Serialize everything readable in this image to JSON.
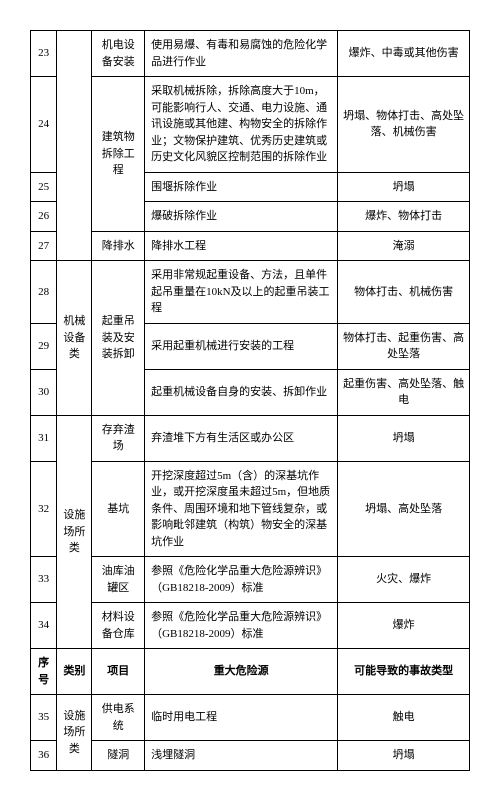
{
  "header": {
    "seq": "序号",
    "cat": "类别",
    "item": "项目",
    "src": "重大危险源",
    "acc": "可能导致的事故类型"
  },
  "rows": [
    {
      "seq": "23",
      "cat": "",
      "item": "机电设备安装",
      "src": "使用易爆、有毒和易腐蚀的危险化学品进行作业",
      "acc": "爆炸、中毒或其他伤害"
    },
    {
      "seq": "24",
      "cat": "",
      "item": "建筑物拆除工程",
      "src": "采取机械拆除，拆除高度大于10m，可能影响行人、交通、电力设施、通讯设施或其他建、构物安全的拆除作业；文物保护建筑、优秀历史建筑或历史文化风貌区控制范围的拆除作业",
      "acc": "坍塌、物体打击、高处坠落、机械伤害"
    },
    {
      "seq": "25",
      "cat": "",
      "item": "",
      "src": "围堰拆除作业",
      "acc": "坍塌"
    },
    {
      "seq": "26",
      "cat": "",
      "item": "",
      "src": "爆破拆除作业",
      "acc": "爆炸、物体打击"
    },
    {
      "seq": "27",
      "cat": "",
      "item": "降排水",
      "src": "降排水工程",
      "acc": "淹溺"
    },
    {
      "seq": "28",
      "cat": "机械设备类",
      "item": "起重吊装及安装拆卸",
      "src": "采用非常规起重设备、方法，且单件起吊重量在10kN及以上的起重吊装工程",
      "acc": "物体打击、机械伤害"
    },
    {
      "seq": "29",
      "cat": "",
      "item": "",
      "src": "采用起重机械进行安装的工程",
      "acc": "物体打击、起重伤害、高处坠落"
    },
    {
      "seq": "30",
      "cat": "",
      "item": "",
      "src": "起重机械设备自身的安装、拆卸作业",
      "acc": "起重伤害、高处坠落、触电"
    },
    {
      "seq": "31",
      "cat": "设施场所类",
      "item": "存弃渣场",
      "src": "弃渣堆下方有生活区或办公区",
      "acc": "坍塌"
    },
    {
      "seq": "32",
      "cat": "",
      "item": "基坑",
      "src": "开挖深度超过5m（含）的深基坑作业，或开挖深度虽未超过5m，但地质条件、周围环境和地下管线复杂，或影响毗邻建筑（构筑）物安全的深基坑作业",
      "acc": "坍塌、高处坠落"
    },
    {
      "seq": "33",
      "cat": "",
      "item": "油库油罐区",
      "src": "参照《危险化学品重大危险源辨识》（GB18218-2009）标准",
      "acc": "火灾、爆炸"
    },
    {
      "seq": "34",
      "cat": "",
      "item": "材料设备仓库",
      "src": "参照《危险化学品重大危险源辨识》（GB18218-2009）标准",
      "acc": "爆炸"
    },
    {
      "seq": "35",
      "cat": "设施场所类",
      "item": "供电系统",
      "src": "临时用电工程",
      "acc": "触电"
    },
    {
      "seq": "36",
      "cat": "",
      "item": "隧洞",
      "src": "浅埋隧洞",
      "acc": "坍塌"
    }
  ]
}
